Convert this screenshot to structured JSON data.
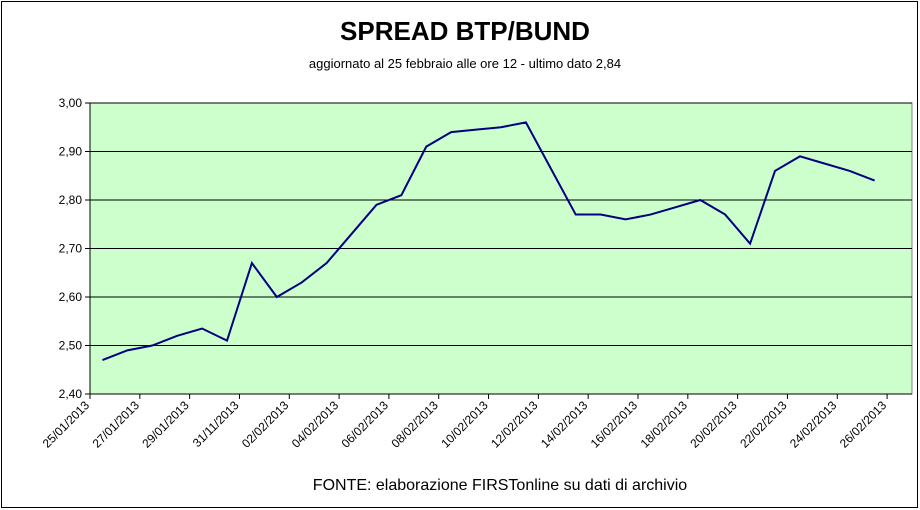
{
  "chart_data": {
    "type": "line",
    "title": "SPREAD  BTP/BUND",
    "subtitle": "aggiornato al 25 febbraio alle ore 12 - ultimo dato 2,84",
    "source": "FONTE: elaborazione FIRSTonline su dati di archivio",
    "xlim": [
      0,
      33
    ],
    "xticks": [
      {
        "value": 0,
        "label": "25/01/2013"
      },
      {
        "value": 2,
        "label": "27/01/2013"
      },
      {
        "value": 4,
        "label": "29/01/2013"
      },
      {
        "value": 6,
        "label": "31/11/2013"
      },
      {
        "value": 8,
        "label": "02/02/2013"
      },
      {
        "value": 10,
        "label": "04/02/2013"
      },
      {
        "value": 12,
        "label": "06/02/2013"
      },
      {
        "value": 14,
        "label": "08/02/2013"
      },
      {
        "value": 16,
        "label": "10/02/2013"
      },
      {
        "value": 18,
        "label": "12/02/2013"
      },
      {
        "value": 20,
        "label": "14/02/2013"
      },
      {
        "value": 22,
        "label": "16/02/2013"
      },
      {
        "value": 24,
        "label": "18/02/2013"
      },
      {
        "value": 26,
        "label": "20/02/2013"
      },
      {
        "value": 28,
        "label": "22/02/2013"
      },
      {
        "value": 30,
        "label": "24/02/2013"
      },
      {
        "value": 32,
        "label": "26/02/2013"
      }
    ],
    "ylim": [
      2.4,
      3.0
    ],
    "yticks": [
      {
        "value": 2.4,
        "label": "2,40"
      },
      {
        "value": 2.5,
        "label": "2,50"
      },
      {
        "value": 2.6,
        "label": "2,60"
      },
      {
        "value": 2.7,
        "label": "2,70"
      },
      {
        "value": 2.8,
        "label": "2,80"
      },
      {
        "value": 2.9,
        "label": "2,90"
      },
      {
        "value": 3.0,
        "label": "3,00"
      }
    ],
    "grid": true,
    "series": [
      {
        "color": "#000080",
        "x": [
          0.5,
          1.5,
          2.5,
          3.5,
          4.5,
          5.5,
          6.5,
          7.5,
          8.5,
          9.5,
          10.5,
          11.5,
          12.5,
          13.5,
          14.5,
          15.5,
          16.5,
          17.5,
          18.5,
          19.5,
          20.5,
          21.5,
          22.5,
          23.5,
          24.5,
          25.5,
          26.5,
          27.5,
          28.5,
          29.5,
          30.5,
          31.5
        ],
        "values": [
          2.47,
          2.49,
          2.5,
          2.52,
          2.535,
          2.51,
          2.67,
          2.6,
          2.63,
          2.67,
          2.73,
          2.79,
          2.81,
          2.91,
          2.94,
          2.945,
          2.95,
          2.96,
          2.865,
          2.77,
          2.77,
          2.76,
          2.77,
          2.785,
          2.8,
          2.77,
          2.71,
          2.86,
          2.89,
          2.875,
          2.86,
          2.84
        ]
      }
    ]
  }
}
